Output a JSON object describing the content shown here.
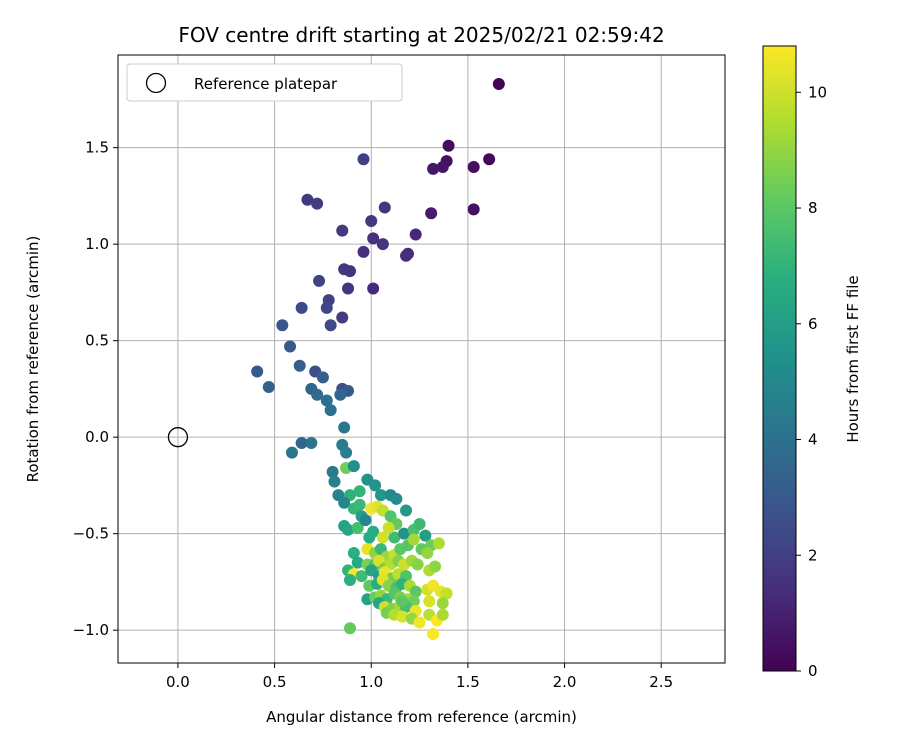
{
  "chart_data": {
    "type": "scatter",
    "title": "FOV centre drift starting at 2025/02/21 02:59:42",
    "xlabel": "Angular distance from reference (arcmin)",
    "ylabel": "Rotation from reference (arcmin)",
    "xlim": [
      -0.31,
      2.83
    ],
    "ylim": [
      -1.17,
      1.98
    ],
    "xticks": [
      0.0,
      0.5,
      1.0,
      1.5,
      2.0,
      2.5
    ],
    "xtick_labels": [
      "0.0",
      "0.5",
      "1.0",
      "1.5",
      "2.0",
      "2.5"
    ],
    "yticks": [
      -1.0,
      -0.5,
      0.0,
      0.5,
      1.0,
      1.5
    ],
    "ytick_labels": [
      "−1.0",
      "−0.5",
      "0.0",
      "0.5",
      "1.0",
      "1.5"
    ],
    "grid": true,
    "legend": {
      "position": "upper-left",
      "entries": [
        "Reference platepar"
      ]
    },
    "reference_point": {
      "x": 0.0,
      "y": 0.0
    },
    "colorbar": {
      "label": "Hours from first FF file",
      "colormap": "viridis",
      "range": [
        0,
        10.8
      ],
      "ticks": [
        0,
        2,
        4,
        6,
        8,
        10
      ],
      "tick_labels": [
        "0",
        "2",
        "4",
        "6",
        "8",
        "10"
      ]
    },
    "points": [
      [
        1.66,
        1.83,
        0.1
      ],
      [
        1.4,
        1.51,
        0.3
      ],
      [
        1.61,
        1.44,
        0.2
      ],
      [
        1.53,
        1.4,
        0.4
      ],
      [
        1.39,
        1.43,
        0.5
      ],
      [
        1.37,
        1.4,
        0.6
      ],
      [
        1.32,
        1.39,
        0.7
      ],
      [
        1.53,
        1.18,
        0.5
      ],
      [
        1.31,
        1.16,
        0.8
      ],
      [
        0.96,
        1.44,
        2.0
      ],
      [
        0.67,
        1.23,
        1.8
      ],
      [
        0.72,
        1.21,
        1.9
      ],
      [
        1.07,
        1.19,
        1.6
      ],
      [
        1.0,
        1.12,
        1.7
      ],
      [
        0.85,
        1.07,
        1.8
      ],
      [
        1.23,
        1.05,
        1.2
      ],
      [
        1.01,
        1.03,
        1.5
      ],
      [
        1.06,
        1.0,
        1.6
      ],
      [
        1.19,
        0.95,
        1.3
      ],
      [
        1.18,
        0.94,
        1.4
      ],
      [
        0.96,
        0.96,
        1.5
      ],
      [
        0.86,
        0.87,
        1.7
      ],
      [
        0.89,
        0.86,
        1.6
      ],
      [
        0.73,
        0.81,
        2.2
      ],
      [
        1.01,
        0.77,
        1.3
      ],
      [
        0.88,
        0.77,
        1.6
      ],
      [
        0.78,
        0.71,
        2.1
      ],
      [
        0.77,
        0.67,
        2.3
      ],
      [
        0.64,
        0.67,
        2.4
      ],
      [
        0.85,
        0.62,
        1.9
      ],
      [
        0.79,
        0.58,
        2.4
      ],
      [
        0.54,
        0.58,
        2.8
      ],
      [
        0.58,
        0.47,
        2.9
      ],
      [
        0.41,
        0.34,
        3.0
      ],
      [
        0.63,
        0.37,
        3.2
      ],
      [
        0.71,
        0.34,
        2.6
      ],
      [
        0.75,
        0.31,
        3.3
      ],
      [
        0.47,
        0.26,
        3.4
      ],
      [
        0.69,
        0.25,
        3.5
      ],
      [
        0.72,
        0.22,
        3.7
      ],
      [
        0.85,
        0.25,
        2.6
      ],
      [
        0.88,
        0.24,
        3.1
      ],
      [
        0.84,
        0.22,
        3.6
      ],
      [
        0.77,
        0.19,
        3.9
      ],
      [
        0.79,
        0.14,
        4.0
      ],
      [
        0.86,
        0.05,
        4.3
      ],
      [
        0.64,
        -0.03,
        3.5
      ],
      [
        0.69,
        -0.03,
        4.1
      ],
      [
        0.59,
        -0.08,
        4.2
      ],
      [
        0.85,
        -0.04,
        4.5
      ],
      [
        0.87,
        -0.08,
        4.6
      ],
      [
        0.8,
        -0.18,
        4.4
      ],
      [
        0.87,
        -0.16,
        8.4
      ],
      [
        0.91,
        -0.15,
        5.3
      ],
      [
        0.81,
        -0.23,
        4.7
      ],
      [
        0.83,
        -0.3,
        4.8
      ],
      [
        0.89,
        -0.3,
        6.9
      ],
      [
        0.94,
        -0.28,
        7.0
      ],
      [
        0.98,
        -0.22,
        5.5
      ],
      [
        1.02,
        -0.25,
        5.6
      ],
      [
        1.05,
        -0.3,
        5.7
      ],
      [
        1.1,
        -0.3,
        5.1
      ],
      [
        1.13,
        -0.32,
        5.2
      ],
      [
        0.86,
        -0.34,
        4.9
      ],
      [
        0.91,
        -0.37,
        7.1
      ],
      [
        0.95,
        -0.41,
        5.9
      ],
      [
        1.0,
        -0.37,
        10.6
      ],
      [
        1.03,
        -0.36,
        10.3
      ],
      [
        1.06,
        -0.38,
        9.8
      ],
      [
        1.1,
        -0.41,
        7.8
      ],
      [
        1.18,
        -0.38,
        5.8
      ],
      [
        1.13,
        -0.45,
        8.2
      ],
      [
        0.86,
        -0.46,
        6.2
      ],
      [
        0.88,
        -0.48,
        6.4
      ],
      [
        0.93,
        -0.47,
        7.5
      ],
      [
        0.97,
        -0.43,
        4.9
      ],
      [
        1.01,
        -0.49,
        6.6
      ],
      [
        1.06,
        -0.52,
        10.1
      ],
      [
        1.12,
        -0.52,
        7.4
      ],
      [
        1.17,
        -0.5,
        5.5
      ],
      [
        1.22,
        -0.48,
        7.6
      ],
      [
        1.25,
        -0.45,
        7.3
      ],
      [
        1.28,
        -0.51,
        6.0
      ],
      [
        1.31,
        -0.56,
        8.3
      ],
      [
        1.35,
        -0.55,
        9.5
      ],
      [
        0.91,
        -0.6,
        6.8
      ],
      [
        0.98,
        -0.58,
        10.4
      ],
      [
        1.02,
        -0.6,
        8.9
      ],
      [
        1.05,
        -0.58,
        7.2
      ],
      [
        1.08,
        -0.62,
        9.1
      ],
      [
        1.12,
        -0.61,
        9.9
      ],
      [
        1.15,
        -0.58,
        8.0
      ],
      [
        1.19,
        -0.56,
        7.9
      ],
      [
        1.22,
        -0.53,
        9.3
      ],
      [
        1.26,
        -0.58,
        8.1
      ],
      [
        1.29,
        -0.6,
        9.0
      ],
      [
        0.93,
        -0.65,
        6.5
      ],
      [
        0.98,
        -0.66,
        8.6
      ],
      [
        1.02,
        -0.66,
        7.7
      ],
      [
        1.04,
        -0.64,
        10.2
      ],
      [
        1.07,
        -0.68,
        8.4
      ],
      [
        1.1,
        -0.66,
        9.6
      ],
      [
        1.14,
        -0.64,
        8.7
      ],
      [
        1.17,
        -0.66,
        10.0
      ],
      [
        1.21,
        -0.64,
        9.2
      ],
      [
        1.24,
        -0.66,
        8.8
      ],
      [
        0.88,
        -0.69,
        7.0
      ],
      [
        0.91,
        -0.71,
        10.7
      ],
      [
        0.95,
        -0.72,
        7.4
      ],
      [
        1.0,
        -0.69,
        6.3
      ],
      [
        1.04,
        -0.72,
        6.1
      ],
      [
        1.07,
        -0.7,
        10.5
      ],
      [
        1.11,
        -0.73,
        8.5
      ],
      [
        1.14,
        -0.71,
        9.7
      ],
      [
        1.18,
        -0.72,
        7.8
      ],
      [
        1.3,
        -0.69,
        9.5
      ],
      [
        1.33,
        -0.67,
        8.9
      ],
      [
        0.89,
        -0.74,
        6.8
      ],
      [
        0.99,
        -0.77,
        8.1
      ],
      [
        1.03,
        -0.76,
        6.7
      ],
      [
        1.06,
        -0.74,
        10.3
      ],
      [
        1.09,
        -0.77,
        8.8
      ],
      [
        1.13,
        -0.78,
        7.6
      ],
      [
        1.16,
        -0.76,
        6.9
      ],
      [
        1.2,
        -0.77,
        9.4
      ],
      [
        1.23,
        -0.8,
        8.0
      ],
      [
        1.29,
        -0.79,
        10.1
      ],
      [
        1.32,
        -0.77,
        10.6
      ],
      [
        1.36,
        -0.8,
        10.4
      ],
      [
        1.39,
        -0.81,
        9.8
      ],
      [
        0.98,
        -0.84,
        6.2
      ],
      [
        1.02,
        -0.83,
        8.3
      ],
      [
        1.05,
        -0.82,
        9.0
      ],
      [
        1.08,
        -0.84,
        7.3
      ],
      [
        1.12,
        -0.81,
        7.9
      ],
      [
        1.15,
        -0.83,
        8.6
      ],
      [
        1.19,
        -0.84,
        9.2
      ],
      [
        1.22,
        -0.85,
        8.4
      ],
      [
        1.3,
        -0.85,
        10.2
      ],
      [
        1.37,
        -0.86,
        9.1
      ],
      [
        1.04,
        -0.86,
        6.4
      ],
      [
        1.07,
        -0.88,
        10.0
      ],
      [
        1.11,
        -0.89,
        8.7
      ],
      [
        1.15,
        -0.87,
        9.3
      ],
      [
        1.18,
        -0.88,
        7.5
      ],
      [
        1.23,
        -0.9,
        10.5
      ],
      [
        1.08,
        -0.91,
        8.5
      ],
      [
        1.12,
        -0.92,
        9.6
      ],
      [
        1.16,
        -0.93,
        10.2
      ],
      [
        1.21,
        -0.94,
        9.0
      ],
      [
        1.25,
        -0.96,
        10.6
      ],
      [
        1.3,
        -0.92,
        9.7
      ],
      [
        1.34,
        -0.95,
        10.8
      ],
      [
        1.37,
        -0.92,
        9.4
      ],
      [
        1.32,
        -1.02,
        10.7
      ],
      [
        0.89,
        -0.99,
        8.2
      ],
      [
        1.16,
        -0.85,
        8.0
      ],
      [
        0.94,
        -0.35,
        7.2
      ],
      [
        0.99,
        -0.52,
        6.6
      ],
      [
        1.09,
        -0.47,
        9.9
      ]
    ]
  }
}
